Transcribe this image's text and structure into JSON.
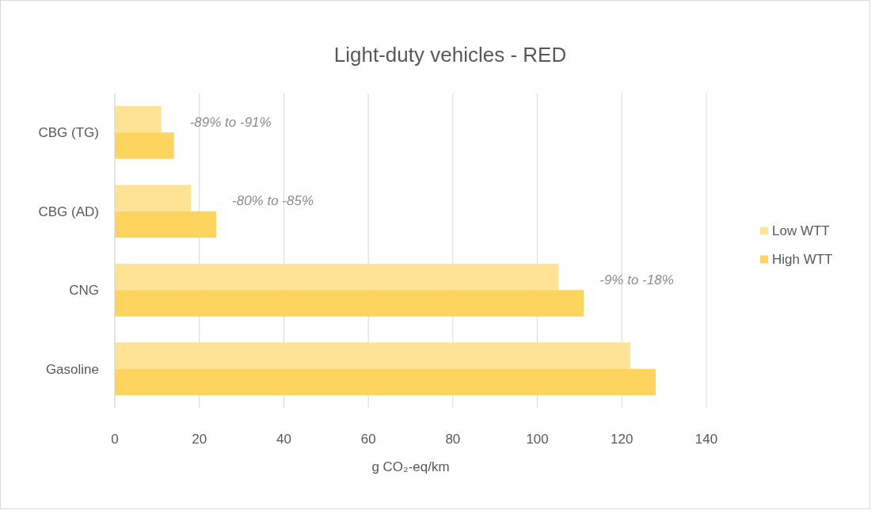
{
  "chart_data": {
    "type": "bar",
    "orientation": "horizontal",
    "title": "Light-duty vehicles - RED",
    "xlabel": "g CO₂-eq/km",
    "categories": [
      "CBG (TG)",
      "CBG (AD)",
      "CNG",
      "Gasoline"
    ],
    "series": [
      {
        "name": "Low WTT",
        "color": "#fde393",
        "values": [
          11,
          18,
          105,
          122
        ]
      },
      {
        "name": "High WTT",
        "color": "#fdd55e",
        "values": [
          14,
          24,
          111,
          128
        ]
      }
    ],
    "xlim": [
      0,
      140
    ],
    "xticks": [
      0,
      20,
      40,
      60,
      80,
      100,
      120,
      140
    ],
    "grid": "x",
    "legend": "right",
    "annotations": [
      "-89% to -91%",
      "-80% to -85%",
      "-9% to -18%"
    ]
  }
}
